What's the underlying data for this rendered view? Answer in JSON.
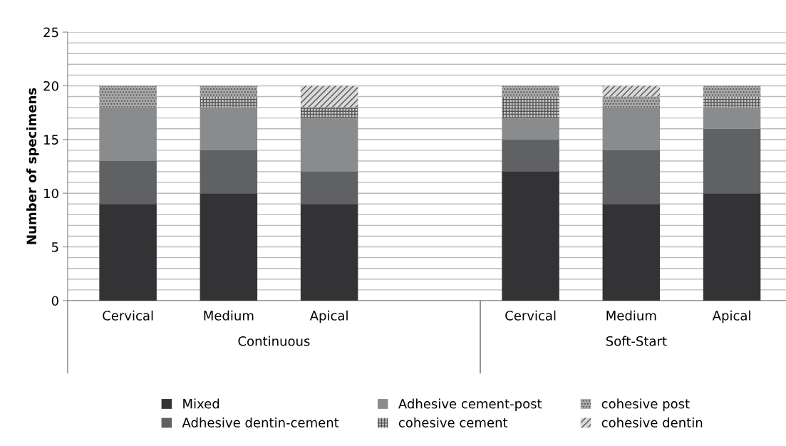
{
  "chart_data": {
    "type": "bar",
    "stacked": true,
    "ylabel": "Number of specimens",
    "categories": [
      "Cervical",
      "Medium",
      "Apical",
      null,
      "Cervical",
      "Medium",
      "Apical"
    ],
    "series": [
      {
        "name": "Mixed",
        "color": "#333335",
        "values": [
          9,
          10,
          9,
          null,
          12,
          9,
          10
        ]
      },
      {
        "name": "Adhesive dentin-cement",
        "color": "#606163",
        "values": [
          4,
          4,
          3,
          null,
          3,
          5,
          6
        ]
      },
      {
        "name": "Adhesive cement-post",
        "color": "#8a8b8d",
        "values": [
          5,
          4,
          5,
          null,
          2,
          4,
          2
        ]
      },
      {
        "name": "cohesive cement",
        "color": "#c8c8c8",
        "values": [
          null,
          1,
          1,
          null,
          2,
          null,
          1
        ]
      },
      {
        "name": "cohesive post",
        "color": "#a9a9a9",
        "values": [
          2,
          1,
          null,
          null,
          1,
          1,
          1
        ]
      },
      {
        "name": "cohesive dentin",
        "color": "#d9d9d9",
        "values": [
          null,
          null,
          2,
          null,
          null,
          1,
          null
        ]
      }
    ],
    "annotations": [
      "Continuous",
      "Soft-Start"
    ],
    "ylim": [
      0,
      25
    ],
    "yticks": [
      0,
      5,
      10,
      15,
      20,
      25
    ],
    "grid": "y",
    "legend": "bottom"
  }
}
